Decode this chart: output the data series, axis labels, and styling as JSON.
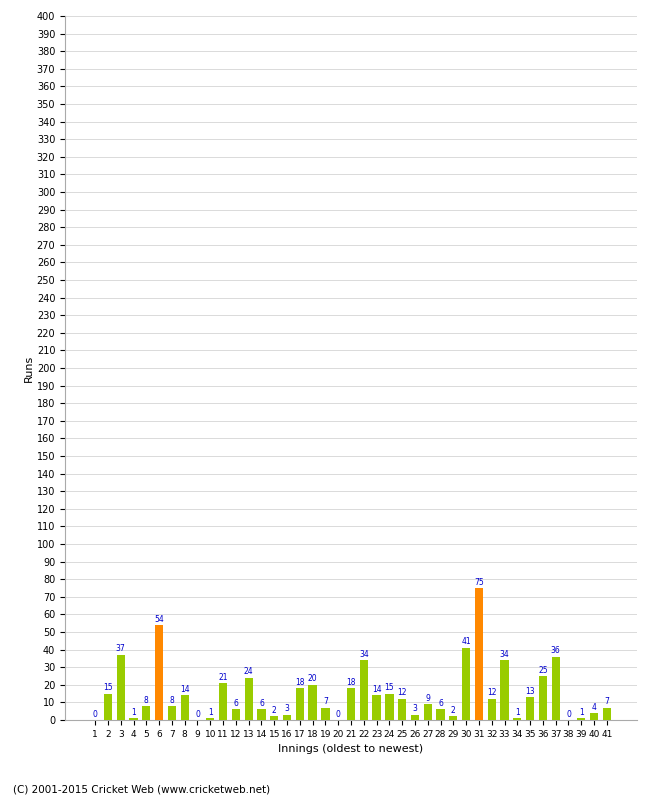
{
  "innings": [
    1,
    2,
    3,
    4,
    5,
    6,
    7,
    8,
    9,
    10,
    11,
    12,
    13,
    14,
    15,
    16,
    17,
    18,
    19,
    20,
    21,
    22,
    23,
    24,
    25,
    26,
    27,
    28,
    29,
    30,
    31,
    32,
    33,
    34,
    35,
    36,
    37,
    38,
    39,
    40,
    41
  ],
  "values": [
    0,
    15,
    37,
    1,
    8,
    54,
    8,
    14,
    0,
    1,
    21,
    6,
    24,
    6,
    2,
    3,
    18,
    20,
    7,
    0,
    18,
    34,
    14,
    15,
    12,
    3,
    9,
    6,
    2,
    41,
    75,
    12,
    34,
    1,
    13,
    25,
    36,
    0,
    1,
    4,
    7
  ],
  "colors": [
    "#99cc00",
    "#99cc00",
    "#99cc00",
    "#99cc00",
    "#99cc00",
    "#ff8800",
    "#99cc00",
    "#99cc00",
    "#99cc00",
    "#99cc00",
    "#99cc00",
    "#99cc00",
    "#99cc00",
    "#99cc00",
    "#99cc00",
    "#99cc00",
    "#99cc00",
    "#99cc00",
    "#99cc00",
    "#99cc00",
    "#99cc00",
    "#99cc00",
    "#99cc00",
    "#99cc00",
    "#99cc00",
    "#99cc00",
    "#99cc00",
    "#99cc00",
    "#99cc00",
    "#99cc00",
    "#ff8800",
    "#99cc00",
    "#99cc00",
    "#99cc00",
    "#99cc00",
    "#99cc00",
    "#99cc00",
    "#99cc00",
    "#99cc00",
    "#99cc00",
    "#99cc00"
  ],
  "xlabel": "Innings (oldest to newest)",
  "ylabel": "Runs",
  "ylim": [
    0,
    400
  ],
  "background_color": "#ffffff",
  "grid_color": "#cccccc",
  "label_color": "#0000cc",
  "copyright": "(C) 2001-2015 Cricket Web (www.cricketweb.net)"
}
